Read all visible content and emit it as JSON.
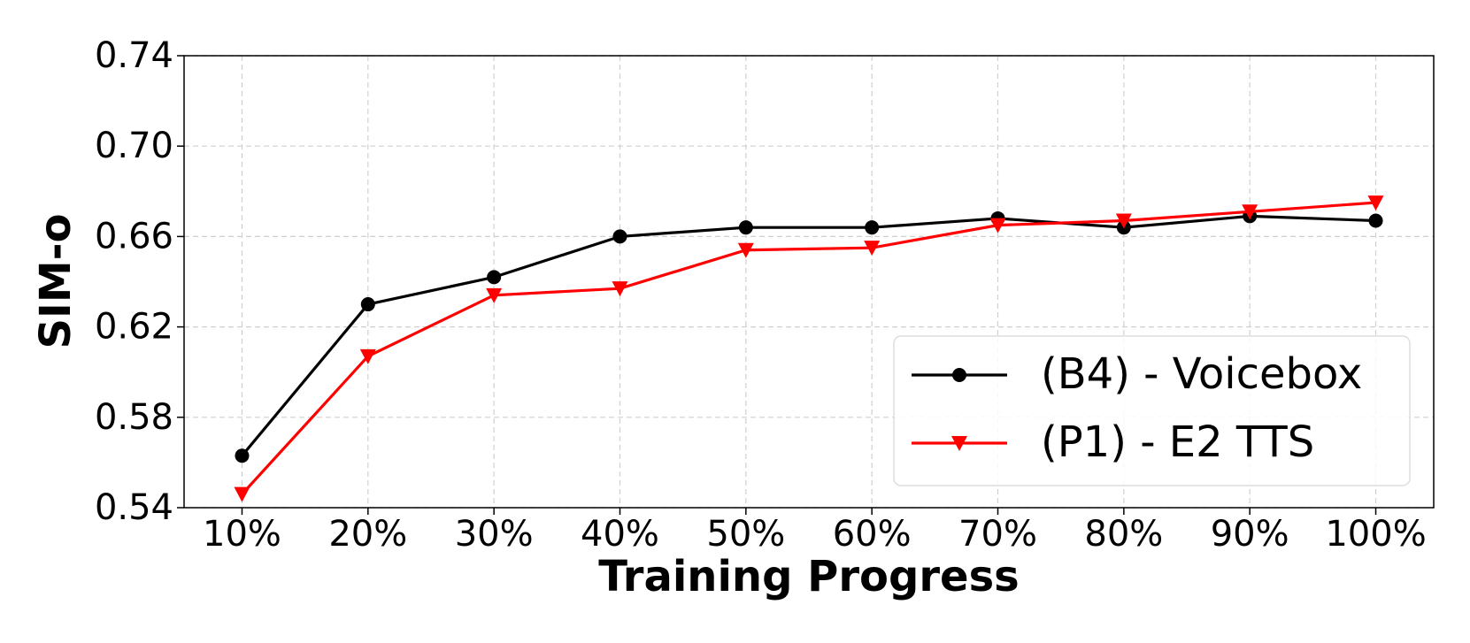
{
  "chart_data": {
    "type": "line",
    "xlabel": "Training Progress",
    "ylabel": "SIM-o",
    "categories": [
      "10%",
      "20%",
      "30%",
      "40%",
      "50%",
      "60%",
      "70%",
      "80%",
      "90%",
      "100%"
    ],
    "series": [
      {
        "name": "(B4) - Voicebox",
        "color": "#000000",
        "marker": "circle",
        "values": [
          0.563,
          0.63,
          0.642,
          0.66,
          0.664,
          0.664,
          0.668,
          0.664,
          0.669,
          0.667
        ]
      },
      {
        "name": "(P1) - E2 TTS",
        "color": "#ff0000",
        "marker": "triangle-down",
        "values": [
          0.546,
          0.607,
          0.634,
          0.637,
          0.654,
          0.655,
          0.665,
          0.667,
          0.671,
          0.675
        ]
      }
    ],
    "ylim": [
      0.54,
      0.74
    ],
    "yticks": [
      0.54,
      0.58,
      0.62,
      0.66,
      {
        "value": 0.7,
        "label": "0.70"
      },
      0.74
    ],
    "grid": true,
    "legend": "lower right"
  }
}
